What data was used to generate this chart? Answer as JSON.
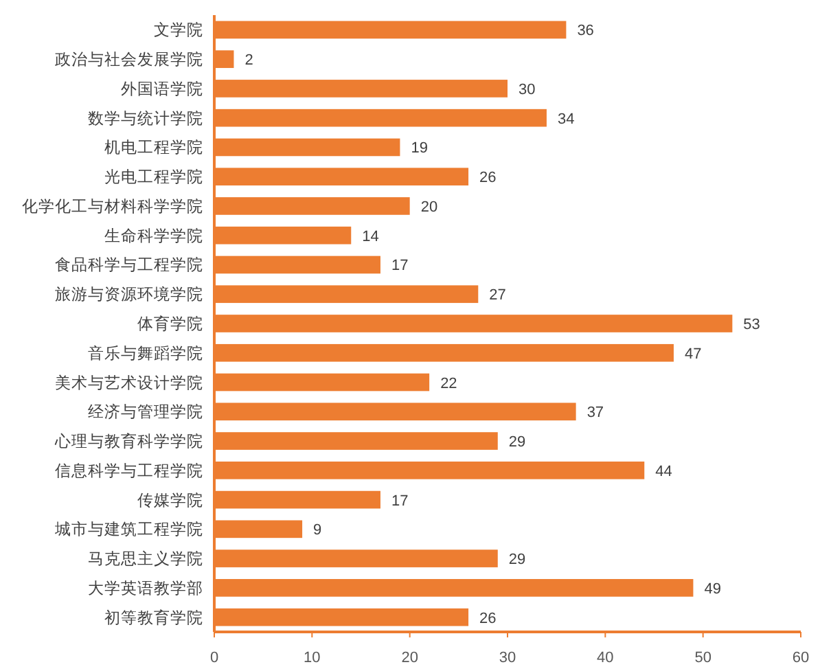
{
  "chart_data": {
    "type": "bar",
    "orientation": "horizontal",
    "categories": [
      "文学院",
      "政治与社会发展学院",
      "外国语学院",
      "数学与统计学院",
      "机电工程学院",
      "光电工程学院",
      "化学化工与材料科学学院",
      "生命科学学院",
      "食品科学与工程学院",
      "旅游与资源环境学院",
      "体育学院",
      "音乐与舞蹈学院",
      "美术与艺术设计学院",
      "经济与管理学院",
      "心理与教育科学学院",
      "信息科学与工程学院",
      "传媒学院",
      "城市与建筑工程学院",
      "马克思主义学院",
      "大学英语教学部",
      "初等教育学院"
    ],
    "values": [
      36,
      2,
      30,
      34,
      19,
      26,
      20,
      14,
      17,
      27,
      53,
      47,
      22,
      37,
      29,
      44,
      17,
      9,
      29,
      49,
      26
    ],
    "color": "#ed7d31",
    "xlim": [
      0,
      60
    ],
    "xticks": [
      0,
      10,
      20,
      30,
      40,
      50,
      60
    ],
    "data_labels": true,
    "grid": false
  }
}
